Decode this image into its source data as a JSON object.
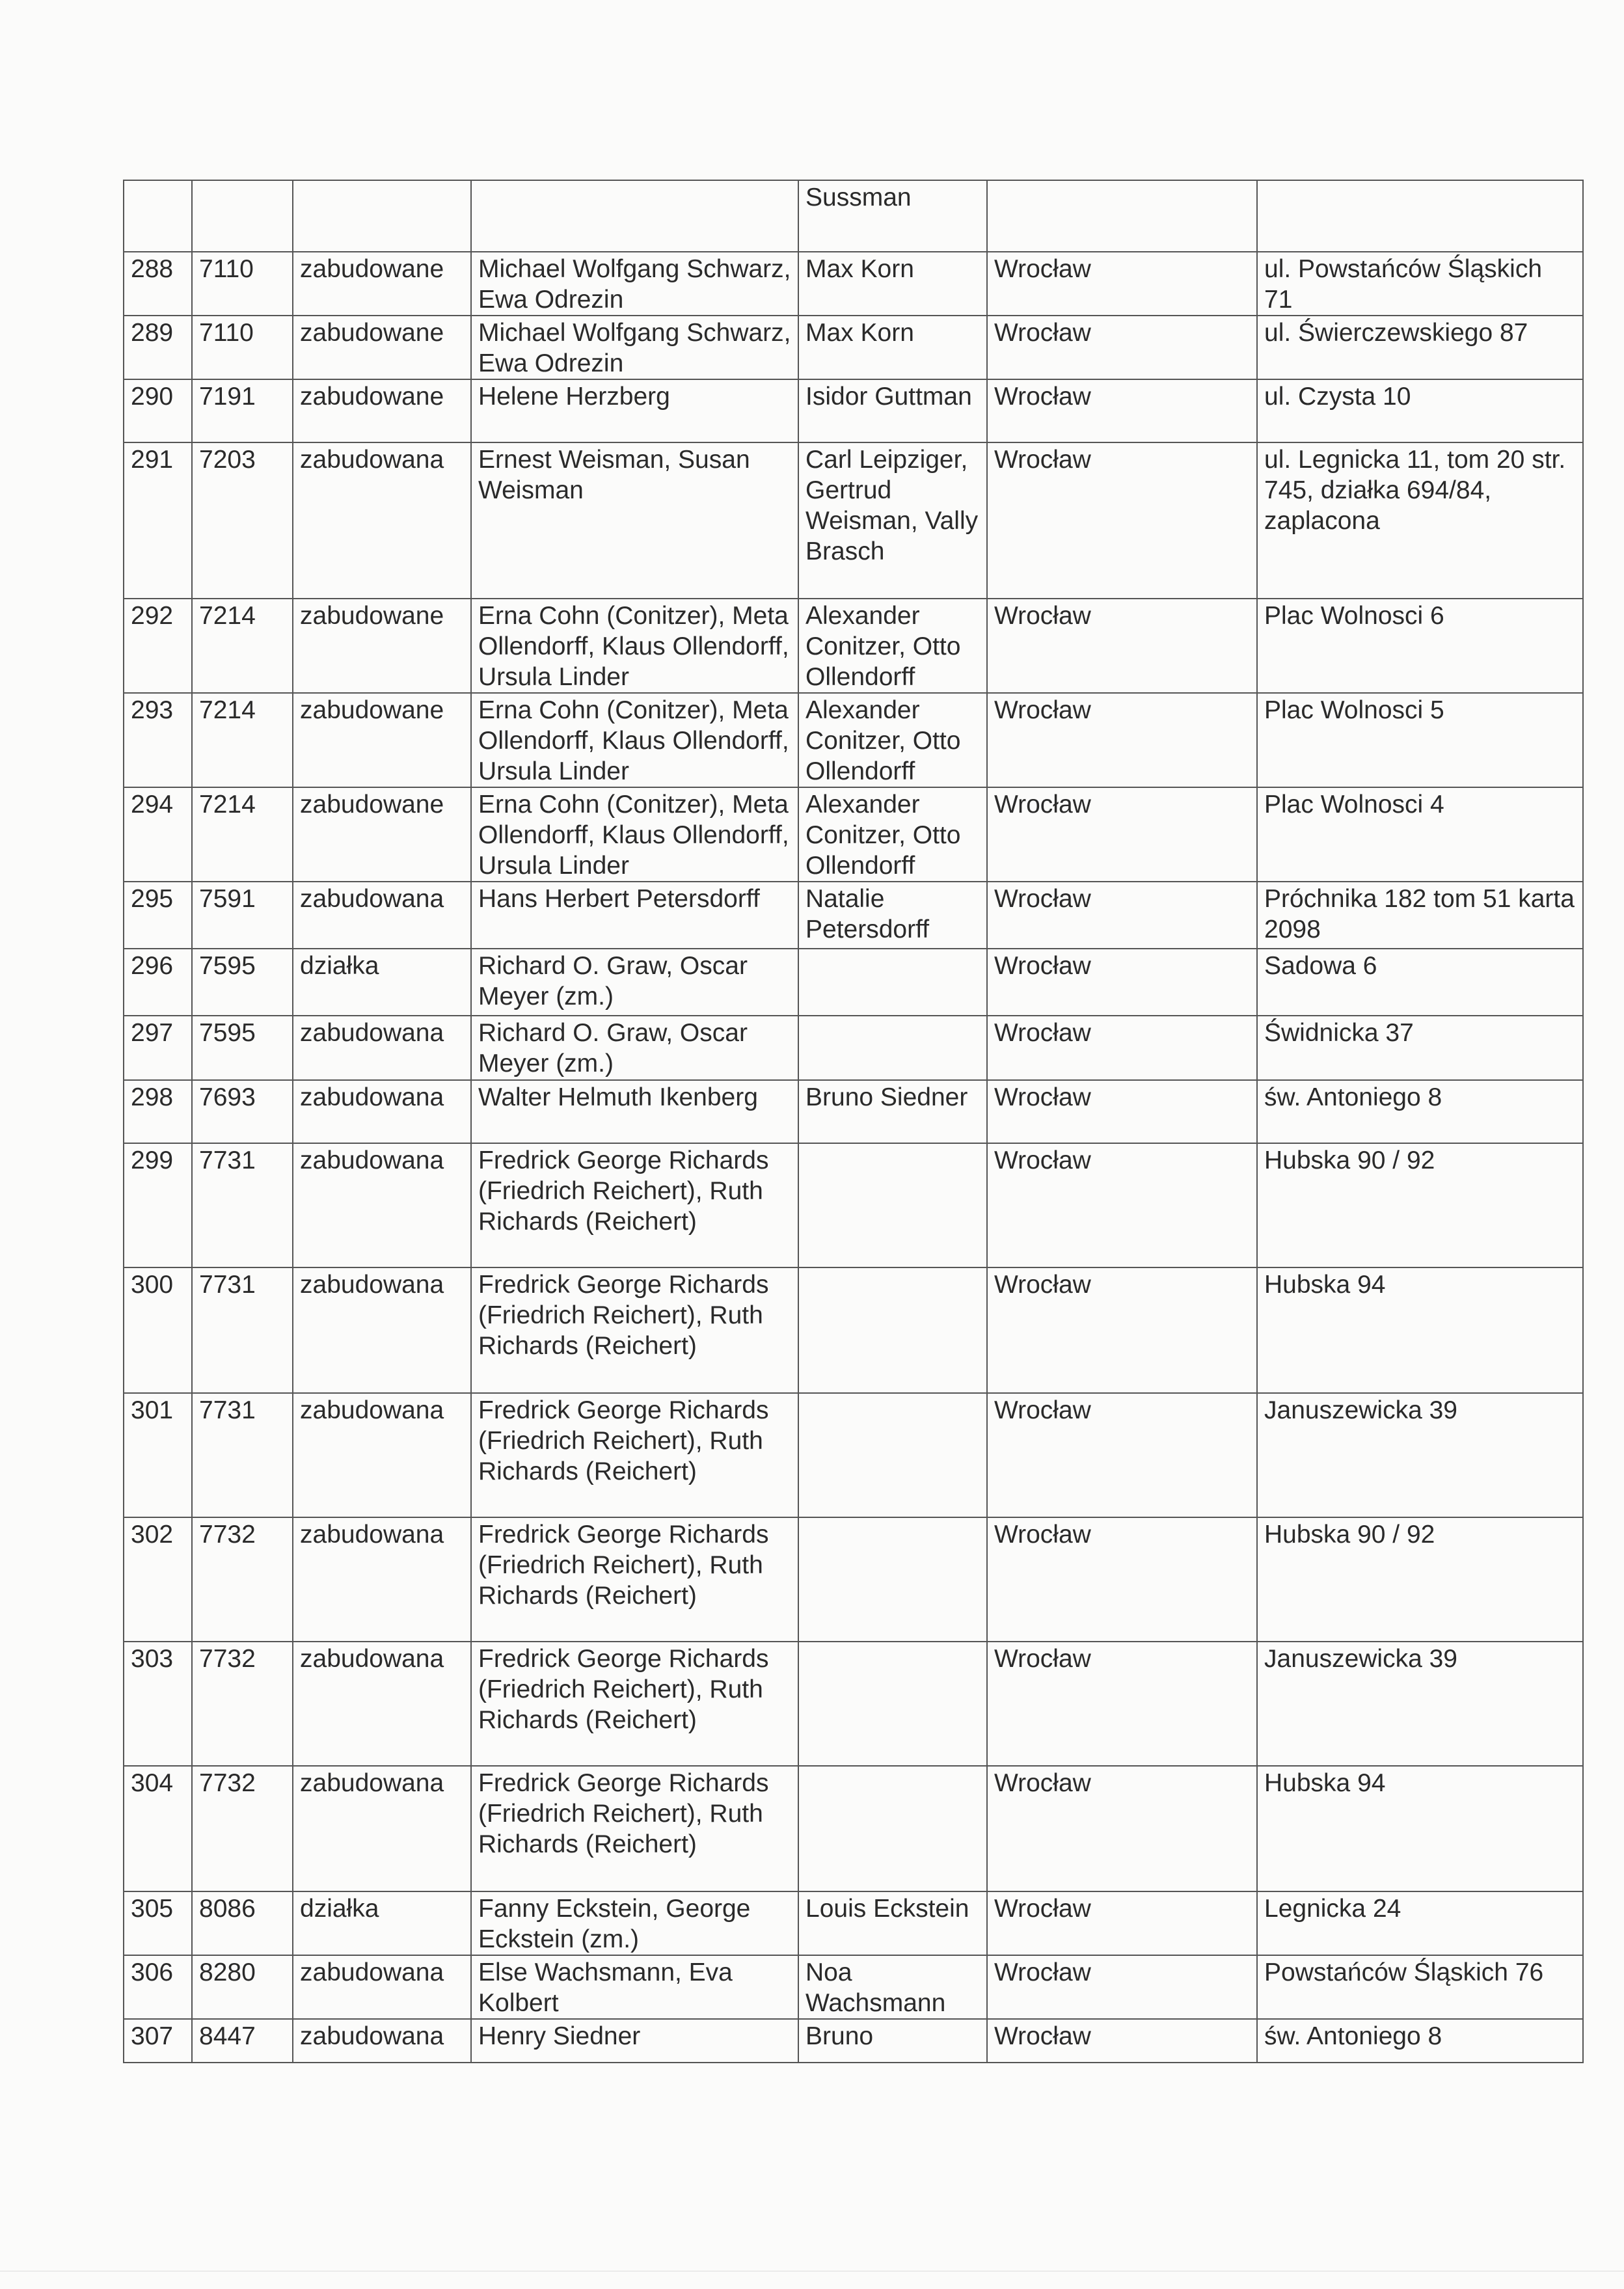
{
  "table": {
    "rows": [
      [
        "",
        "",
        "",
        "",
        "Sussman",
        "",
        ""
      ],
      [
        "288",
        "7110",
        "zabudowane",
        "Michael Wolfgang Schwarz, Ewa Odrezin",
        "Max Korn",
        "Wrocław",
        "ul. Powstańców Śląskich 71"
      ],
      [
        "289",
        "7110",
        "zabudowane",
        "Michael Wolfgang Schwarz, Ewa Odrezin",
        "Max Korn",
        "Wrocław",
        "ul. Świerczewskiego 87"
      ],
      [
        "290",
        "7191",
        "zabudowane",
        "Helene Herzberg",
        "Isidor Guttman",
        "Wrocław",
        "ul. Czysta 10"
      ],
      [
        "291",
        "7203",
        "zabudowana",
        "Ernest Weisman, Susan Weisman",
        "Carl Leipziger, Gertrud Weisman, Vally Brasch",
        "Wrocław",
        "ul. Legnicka 11, tom 20 str. 745, działka 694/84, zaplacona"
      ],
      [
        "292",
        "7214",
        "zabudowane",
        "Erna Cohn (Conitzer), Meta Ollendorff, Klaus Ollendorff, Ursula Linder",
        "Alexander Conitzer, Otto Ollendorff",
        "Wrocław",
        "Plac Wolnosci 6"
      ],
      [
        "293",
        "7214",
        "zabudowane",
        "Erna Cohn (Conitzer), Meta Ollendorff, Klaus Ollendorff, Ursula Linder",
        "Alexander Conitzer, Otto Ollendorff",
        "Wrocław",
        "Plac Wolnosci 5"
      ],
      [
        "294",
        "7214",
        "zabudowane",
        "Erna Cohn (Conitzer), Meta Ollendorff, Klaus Ollendorff, Ursula Linder",
        "Alexander Conitzer, Otto Ollendorff",
        "Wrocław",
        "Plac Wolnosci 4"
      ],
      [
        "295",
        "7591",
        "zabudowana",
        "Hans Herbert Petersdorff",
        "Natalie Petersdorff",
        "Wrocław",
        "Próchnika 182 tom 51 karta 2098"
      ],
      [
        "296",
        "7595",
        "działka",
        "Richard O. Graw, Oscar Meyer (zm.)",
        "",
        "Wrocław",
        "Sadowa 6"
      ],
      [
        "297",
        "7595",
        "zabudowana",
        "Richard O. Graw, Oscar Meyer (zm.)",
        "",
        "Wrocław",
        "Świdnicka 37"
      ],
      [
        "298",
        "7693",
        "zabudowana",
        "Walter Helmuth Ikenberg",
        "Bruno Siedner",
        "Wrocław",
        "św. Antoniego 8"
      ],
      [
        "299",
        "7731",
        "zabudowana",
        "Fredrick George Richards (Friedrich Reichert), Ruth Richards (Reichert)",
        "",
        "Wrocław",
        "Hubska 90 / 92"
      ],
      [
        "300",
        "7731",
        "zabudowana",
        "Fredrick George Richards (Friedrich Reichert), Ruth Richards (Reichert)",
        "",
        "Wrocław",
        "Hubska 94"
      ],
      [
        "301",
        "7731",
        "zabudowana",
        "Fredrick George Richards (Friedrich Reichert), Ruth Richards (Reichert)",
        "",
        "Wrocław",
        "Januszewicka 39"
      ],
      [
        "302",
        "7732",
        "zabudowana",
        "Fredrick George Richards (Friedrich Reichert), Ruth Richards (Reichert)",
        "",
        "Wrocław",
        "Hubska 90 / 92"
      ],
      [
        "303",
        "7732",
        "zabudowana",
        "Fredrick George Richards (Friedrich Reichert), Ruth Richards (Reichert)",
        "",
        "Wrocław",
        "Januszewicka 39"
      ],
      [
        "304",
        "7732",
        "zabudowana",
        "Fredrick George Richards (Friedrich Reichert), Ruth Richards (Reichert)",
        "",
        "Wrocław",
        "Hubska 94"
      ],
      [
        "305",
        "8086",
        "działka",
        "Fanny Eckstein, George Eckstein (zm.)",
        "Louis Eckstein",
        "Wrocław",
        "Legnicka 24"
      ],
      [
        "306",
        "8280",
        "zabudowana",
        "Else Wachsmann, Eva Kolbert",
        "Noa Wachsmann",
        "Wrocław",
        "Powstańców Śląskich 76"
      ],
      [
        "307",
        "8447",
        "zabudowana",
        "Henry Siedner",
        "Bruno",
        "Wrocław",
        "św. Antoniego 8"
      ]
    ]
  }
}
